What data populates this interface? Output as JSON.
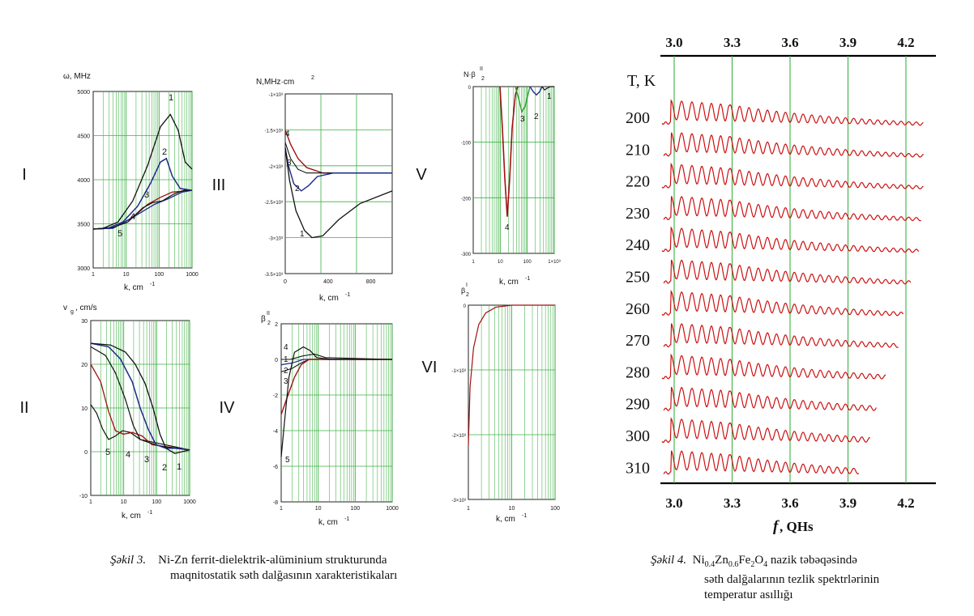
{
  "figure3": {
    "panel_roman": [
      "I",
      "II",
      "III",
      "IV",
      "V",
      "VI"
    ],
    "panels": {
      "I": {
        "ylabel": "ω, MHz",
        "xlabel": "k, cm",
        "xexp": "-1",
        "yticks": [
          "5000",
          "4500",
          "4000",
          "3500",
          "3000"
        ],
        "xticks": [
          "1",
          "10",
          "100",
          "1000"
        ],
        "curve_labels": [
          "1",
          "2",
          "3",
          "4",
          "5"
        ]
      },
      "II": {
        "ylabel": "v",
        "ysub": "g",
        "yunit": ", cm/s",
        "xlabel": "k, cm",
        "xexp": "-1",
        "yticks": [
          "30",
          "20",
          "10",
          "0",
          "-10"
        ],
        "xticks": [
          "1",
          "10",
          "100",
          "1000"
        ],
        "curve_labels": [
          "5",
          "4",
          "3",
          "2",
          "1"
        ]
      },
      "III": {
        "ylabel": "N,MHz·cm",
        "yexp": "2",
        "xlabel": "k, cm",
        "xexp": "-1",
        "yticks": [
          "-1×10³",
          "-1.5×10³",
          "-2×10³",
          "-2.5×10³",
          "-3×10³",
          "-3.5×10³"
        ],
        "xticks": [
          "0",
          "400",
          "800"
        ],
        "curve_labels": [
          "4",
          "3",
          "2",
          "1"
        ]
      },
      "IV": {
        "ylabel": "β",
        "ysub": "2",
        "ysup": "II",
        "xlabel": "k, cm",
        "xexp": "-1",
        "yticks": [
          "2",
          "0",
          "-2",
          "-4",
          "-6",
          "-8"
        ],
        "xticks": [
          "1",
          "10",
          "100",
          "1000"
        ],
        "curve_labels": [
          "4",
          "1",
          "2",
          "3",
          "5"
        ]
      },
      "V": {
        "ylabel": "N·β",
        "ysub": "2",
        "ysup": "II",
        "xlabel": "k, cm",
        "xexp": "-1",
        "yticks": [
          "0",
          "-100",
          "-200",
          "-300"
        ],
        "xticks": [
          "1",
          "10",
          "100",
          "1×10³"
        ],
        "curve_labels": [
          "4",
          "3",
          "2",
          "1"
        ]
      },
      "VI": {
        "ylabel": "β",
        "ysub": "2",
        "ysup": "I",
        "xlabel": "k, cm",
        "xexp": "-1",
        "yticks": [
          "0",
          "-1×10³",
          "-2×10³",
          "-3×10³"
        ],
        "xticks": [
          "1",
          "10",
          "100"
        ]
      }
    },
    "caption_label": "Şəkil 3.",
    "caption_line1": "Ni-Zn ferrit-dielektrik-alüminium strukturunda",
    "caption_line2": "maqnitostatik səth dalğasının xarakteristikaları"
  },
  "figure4": {
    "top_ticks": [
      "3.0",
      "3.3",
      "3.6",
      "3.9",
      "4.2"
    ],
    "bottom_ticks": [
      "3.0",
      "3.3",
      "3.6",
      "3.9",
      "4.2"
    ],
    "t_header": "T, K",
    "temperatures": [
      "200",
      "210",
      "220",
      "230",
      "240",
      "250",
      "260",
      "270",
      "280",
      "290",
      "300",
      "310"
    ],
    "xlabel_f": "f",
    "xlabel_unit": ",  QHs",
    "caption_label": "Şəkil 4.",
    "caption_parts": [
      "Ni",
      "0.4",
      "Zn",
      "0.6",
      "Fe",
      "2",
      "O",
      "4"
    ],
    "caption_rest1": " nazik təbəqəsində",
    "caption_line2": "səth dalğalarının tezlik spektrlərinin",
    "caption_line3": "temperatur   asıllığı"
  },
  "colors": {
    "grid": "#3cb043",
    "curve_black": "#111111",
    "curve_red": "#a01010",
    "curve_blue": "#1a2a8a",
    "curve_green": "#30a030",
    "spectrum_red": "#cc1010"
  }
}
